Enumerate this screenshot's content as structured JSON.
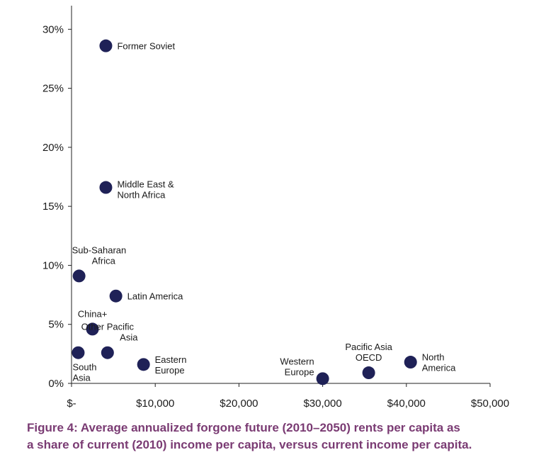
{
  "chart_data": {
    "type": "scatter",
    "x_ticks": [
      {
        "value": 0,
        "label": "$-"
      },
      {
        "value": 10000,
        "label": "$10,000"
      },
      {
        "value": 20000,
        "label": "$20,000"
      },
      {
        "value": 30000,
        "label": "$30,000"
      },
      {
        "value": 40000,
        "label": "$40,000"
      },
      {
        "value": 50000,
        "label": "$50,000"
      }
    ],
    "y_ticks": [
      {
        "value": 0,
        "label": "0%"
      },
      {
        "value": 5,
        "label": "5%"
      },
      {
        "value": 10,
        "label": "10%"
      },
      {
        "value": 15,
        "label": "15%"
      },
      {
        "value": 20,
        "label": "20%"
      },
      {
        "value": 25,
        "label": "25%"
      },
      {
        "value": 30,
        "label": "30%"
      }
    ],
    "xlim": [
      0,
      50000
    ],
    "ylim": [
      0,
      32
    ],
    "grid": false,
    "points": [
      {
        "name": [
          "Former Soviet"
        ],
        "x": 4100,
        "y": 28.6,
        "label_pos": "right"
      },
      {
        "name": [
          "Middle East &",
          "North Africa"
        ],
        "x": 4100,
        "y": 16.6,
        "label_pos": "right-top"
      },
      {
        "name": [
          "Sub-Saharan",
          "Africa"
        ],
        "x": 900,
        "y": 9.1,
        "label_pos": "above"
      },
      {
        "name": [
          "Latin America"
        ],
        "x": 5300,
        "y": 7.4,
        "label_pos": "right"
      },
      {
        "name": [
          "China+"
        ],
        "x": 2500,
        "y": 4.6,
        "label_pos": "above"
      },
      {
        "name": [
          "Other Pacific",
          "Asia"
        ],
        "x": 4300,
        "y": 2.6,
        "label_pos": "above"
      },
      {
        "name": [
          "South",
          "Asia"
        ],
        "x": 800,
        "y": 2.6,
        "label_pos": "below"
      },
      {
        "name": [
          "Eastern",
          "Europe"
        ],
        "x": 8600,
        "y": 1.6,
        "label_pos": "right"
      },
      {
        "name": [
          "Western",
          "Europe"
        ],
        "x": 30000,
        "y": 0.4,
        "label_pos": "left-above"
      },
      {
        "name": [
          "Pacific Asia",
          "OECD"
        ],
        "x": 35500,
        "y": 0.9,
        "label_pos": "above"
      },
      {
        "name": [
          "North",
          "America"
        ],
        "x": 40500,
        "y": 1.8,
        "label_pos": "right"
      }
    ]
  },
  "caption": {
    "line1": "Figure 4: Average annualized forgone future (2010–2050) rents per capita as",
    "line2": "a share of current (2010) income per capita, versus current income per capita."
  },
  "colors": {
    "marker": "#1f2157",
    "caption": "#7a3b73"
  }
}
